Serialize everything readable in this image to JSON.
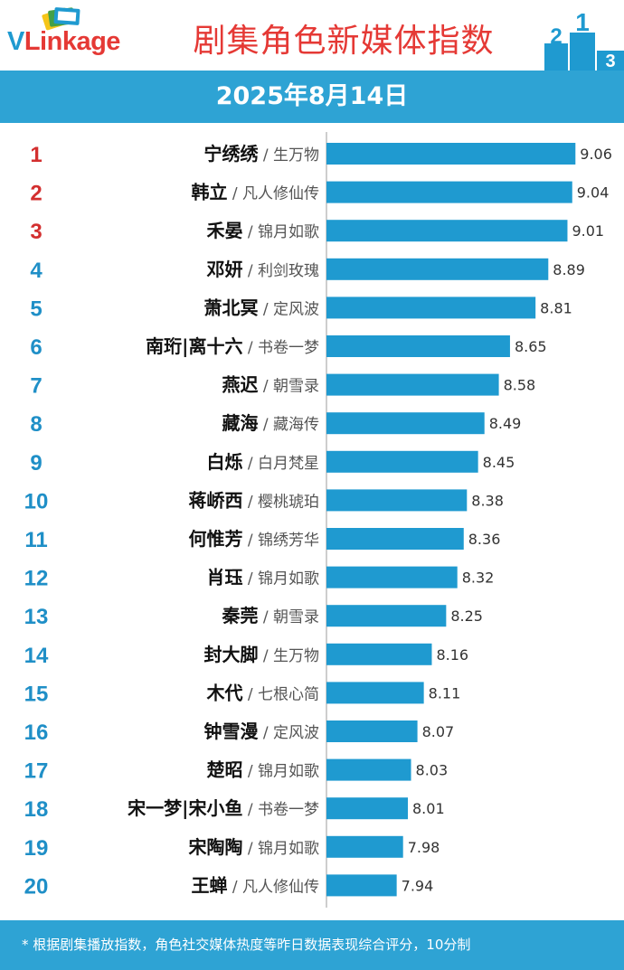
{
  "header": {
    "logo_v": "V",
    "logo_rest": "Linkage",
    "title": "剧集角色新媒体指数",
    "podium_labels": [
      "2",
      "1",
      "3"
    ]
  },
  "date": "2025年8月14日",
  "footer_note": "* 根据剧集播放指数，角色社交媒体热度等昨日数据表现综合评分，10分制",
  "colors": {
    "bar": "#1f9ad0",
    "top_rank": "#d32f2f",
    "rank": "#1f8fc7",
    "header_band": "#2ea3d4",
    "title": "#e53935"
  },
  "chart_data": {
    "type": "bar",
    "orientation": "horizontal",
    "title": "剧集角色新媒体指数",
    "subtitle": "2025年8月14日",
    "xlim": [
      7.5,
      9.2
    ],
    "grid": false,
    "ranks": [
      1,
      2,
      3,
      4,
      5,
      6,
      7,
      8,
      9,
      10,
      11,
      12,
      13,
      14,
      15,
      16,
      17,
      18,
      19,
      20
    ],
    "characters": [
      "宁绣绣",
      "韩立",
      "禾晏",
      "邓妍",
      "萧北冥",
      "南珩|离十六",
      "燕迟",
      "藏海",
      "白烁",
      "蒋峤西",
      "何惟芳",
      "肖珏",
      "秦莞",
      "封大脚",
      "木代",
      "钟雪漫",
      "楚昭",
      "宋一梦|宋小鱼",
      "宋陶陶",
      "王蝉"
    ],
    "dramas": [
      "生万物",
      "凡人修仙传",
      "锦月如歌",
      "利剑玫瑰",
      "定风波",
      "书卷一梦",
      "朝雪录",
      "藏海传",
      "白月梵星",
      "樱桃琥珀",
      "锦绣芳华",
      "锦月如歌",
      "朝雪录",
      "生万物",
      "七根心简",
      "定风波",
      "锦月如歌",
      "书卷一梦",
      "锦月如歌",
      "凡人修仙传"
    ],
    "values": [
      9.06,
      9.04,
      9.01,
      8.89,
      8.81,
      8.65,
      8.58,
      8.49,
      8.45,
      8.38,
      8.36,
      8.32,
      8.25,
      8.16,
      8.11,
      8.07,
      8.03,
      8.01,
      7.98,
      7.94
    ]
  }
}
